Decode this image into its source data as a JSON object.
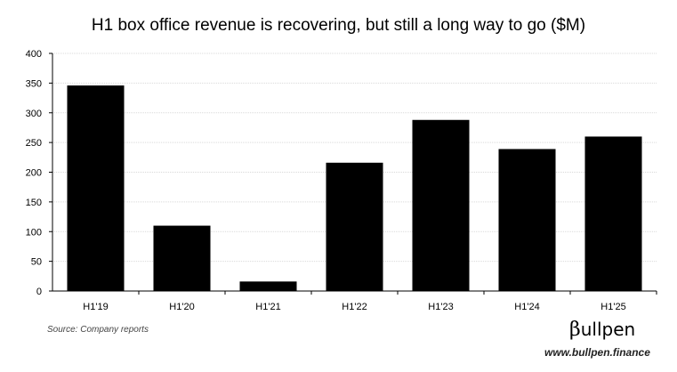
{
  "chart_data": {
    "type": "bar",
    "title": "H1 box office revenue is recovering, but still a long way to go ($M)",
    "categories": [
      "H1'19",
      "H1'20",
      "H1'21",
      "H1'22",
      "H1'23",
      "H1'24",
      "H1'25"
    ],
    "values": [
      346,
      110,
      16,
      216,
      288,
      239,
      260
    ],
    "xlabel": "",
    "ylabel": "",
    "ylim": [
      0,
      400
    ],
    "yticks": [
      0,
      50,
      100,
      150,
      200,
      250,
      300,
      350,
      400
    ],
    "grid": true,
    "legend": "none",
    "bar_color": "#000000",
    "grid_color": "#d9d9d9"
  },
  "footer": {
    "source": "Source: Company reports",
    "logo_text": "ullpen",
    "logo_symbol": "β",
    "url": "www.bullpen.finance"
  }
}
